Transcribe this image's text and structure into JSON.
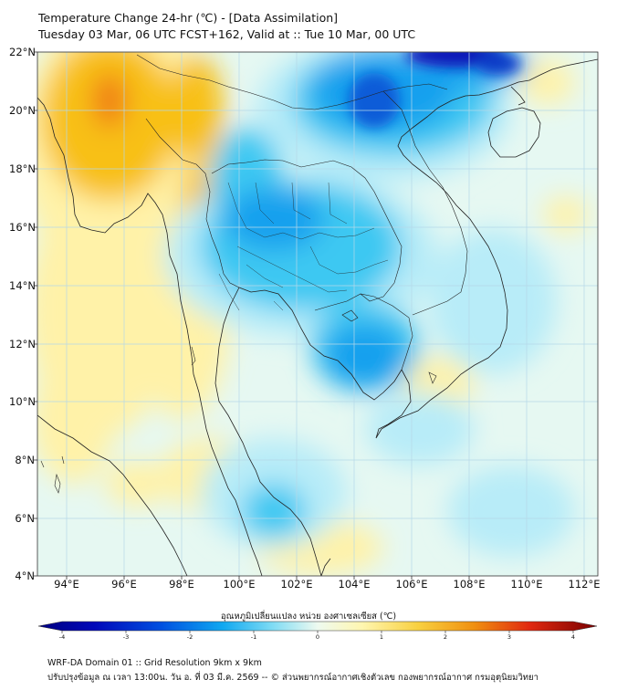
{
  "title_line1": "Temperature Change 24-hr (℃) - [Data Assimilation]",
  "title_line2": "Tuesday 03 Mar, 06 UTC FCST+162, Valid at :: Tue 10 Mar, 00 UTC",
  "lat_labels": [
    "22°N",
    "20°N",
    "18°N",
    "16°N",
    "14°N",
    "12°N",
    "10°N",
    "8°N",
    "6°N",
    "4°N"
  ],
  "lon_labels": [
    "94°E",
    "96°E",
    "98°E",
    "100°E",
    "102°E",
    "104°E",
    "106°E",
    "108°E",
    "110°E",
    "112°E"
  ],
  "colorbar": {
    "label": "อุณหภูมิเปลี่ยนแปลง หน่วย องศาเซลเซียส (℃)",
    "ticks": [
      "-4",
      "-3",
      "-2",
      "-1",
      "0",
      "1",
      "2",
      "3",
      "4"
    ],
    "min": -4,
    "max": 4
  },
  "footer_line1": "WRF-DA Domain 01 :: Grid Resolution 9km x 9km",
  "footer_line2": "ปรับปรุงข้อมูล ณ เวลา 13:00น. วัน อ. ที่ 03 มี.ค. 2569 -- © ส่วนพยากรณ์อากาศเชิงตัวเลข กองพยากรณ์อากาศ กรมอุตุนิยมวิทยา",
  "colors": {
    "grid": "#b5d8e8",
    "coast": "#222222",
    "field_cold_deep": "#0818b8",
    "field_cold": "#18a0ee",
    "field_cool": "#3cc8f2",
    "field_light": "#b8ecf8",
    "field_neutral": "#e6f8f2",
    "field_warm": "#fff2a8",
    "field_hot": "#f8c018",
    "field_hotter": "#f07818"
  }
}
